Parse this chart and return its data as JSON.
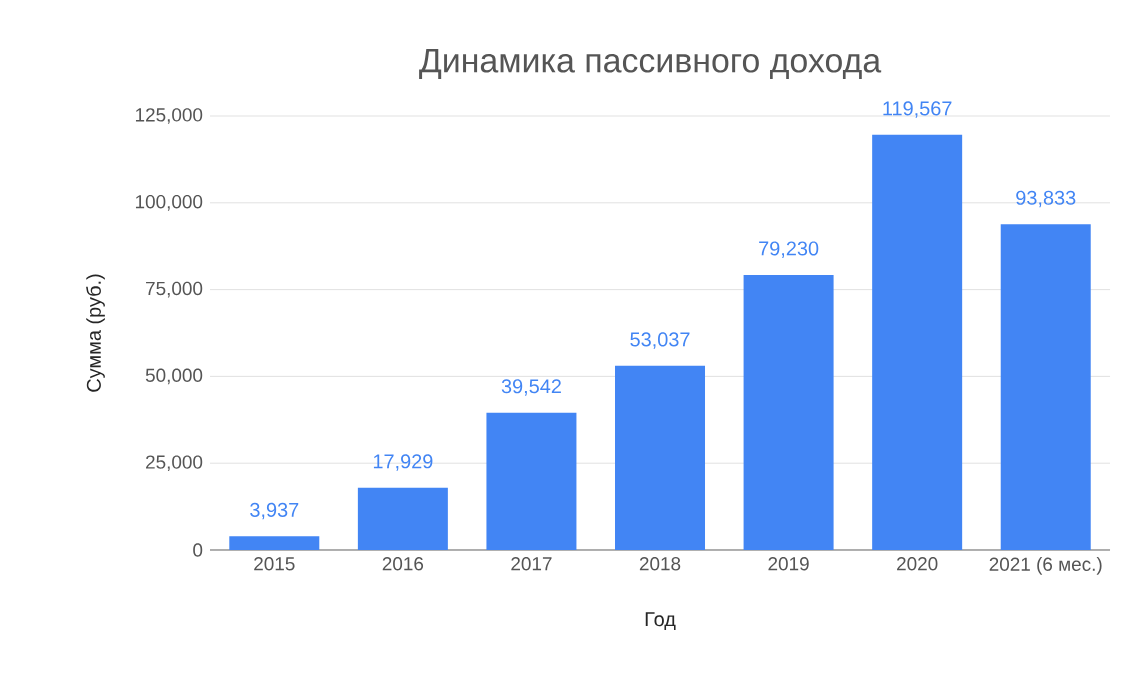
{
  "chart_data": {
    "type": "bar",
    "title": "Динамика пассивного дохода",
    "xlabel": "Год",
    "ylabel": "Сумма (руб.)",
    "categories": [
      "2015",
      "2016",
      "2017",
      "2018",
      "2019",
      "2020",
      "2021 (6 мес.)"
    ],
    "values": [
      3937,
      17929,
      39542,
      53037,
      79230,
      119567,
      93833
    ],
    "value_labels": [
      "3,937",
      "17,929",
      "39,542",
      "53,037",
      "79,230",
      "119,567",
      "93,833"
    ],
    "color": "#4285f4",
    "ylim": [
      0,
      125000
    ],
    "yticks": [
      {
        "value": 0,
        "label": "0"
      },
      {
        "value": 25000,
        "label": "25,000"
      },
      {
        "value": 50000,
        "label": "50,000"
      },
      {
        "value": 75000,
        "label": "75,000"
      },
      {
        "value": 100000,
        "label": "100,000"
      },
      {
        "value": 125000,
        "label": "125,000"
      }
    ],
    "grid": "y"
  }
}
